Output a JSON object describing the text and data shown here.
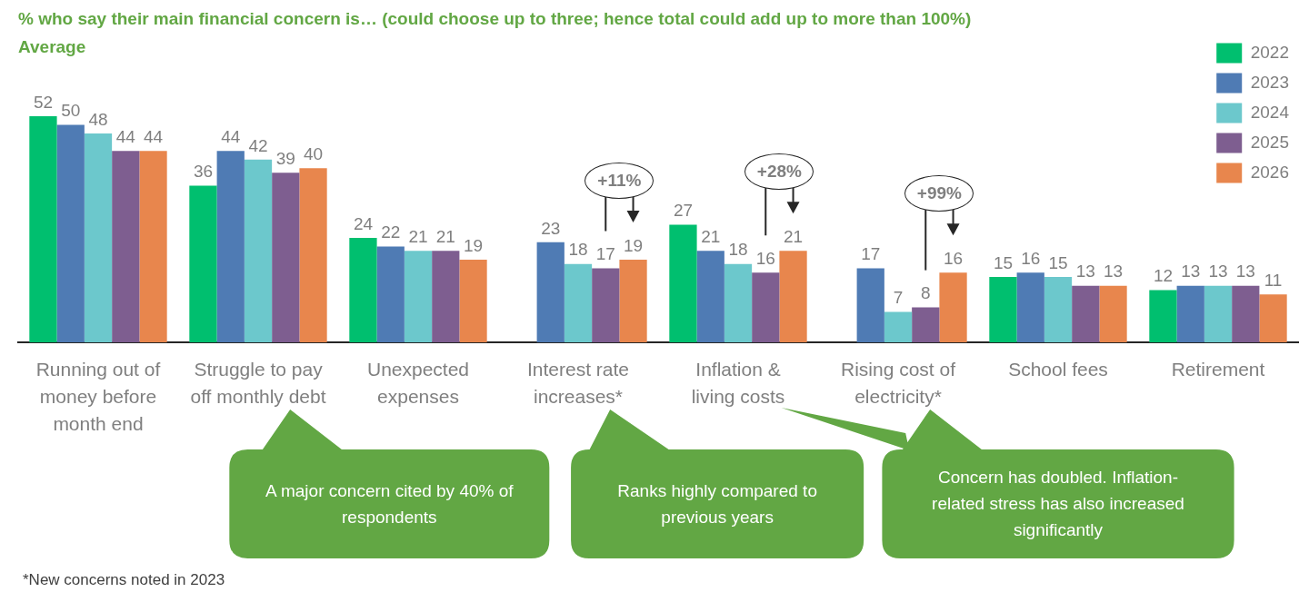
{
  "chart_data": {
    "type": "bar",
    "title": "% who say their main financial concern is… (could choose up to three; hence total could add up to more than 100%)",
    "subtitle": "Average",
    "categories": [
      "Running out of money before month end",
      "Struggle to pay off monthly debt",
      "Unexpected expenses",
      "Interest rate increases*",
      "Inflation & living costs",
      "Rising cost of electricity*",
      "School fees",
      "Retirement"
    ],
    "series": [
      {
        "name": "2022",
        "color": "#00bf6f",
        "values": [
          52,
          36,
          24,
          null,
          27,
          null,
          15,
          12
        ]
      },
      {
        "name": "2023",
        "color": "#4f7bb4",
        "values": [
          50,
          44,
          22,
          23,
          21,
          17,
          16,
          13
        ]
      },
      {
        "name": "2024",
        "color": "#6cc8cc",
        "values": [
          48,
          42,
          21,
          18,
          18,
          7,
          15,
          13
        ]
      },
      {
        "name": "2025",
        "color": "#7e5e90",
        "values": [
          44,
          39,
          21,
          17,
          16,
          8,
          13,
          13
        ]
      },
      {
        "name": "2026",
        "color": "#e8864d",
        "values": [
          44,
          40,
          19,
          19,
          21,
          16,
          13,
          11
        ]
      }
    ],
    "tick_labels": "x",
    "data_labels": true,
    "legend": "top right",
    "annotations": [
      "+11%",
      "+28%",
      "+99%",
      "A major concern cited by 40% of respondents",
      "Ranks highly compared to previous years",
      "Concern has doubled. Inflation-related stress has also increased significantly",
      "*New concerns noted in 2023"
    ]
  }
}
